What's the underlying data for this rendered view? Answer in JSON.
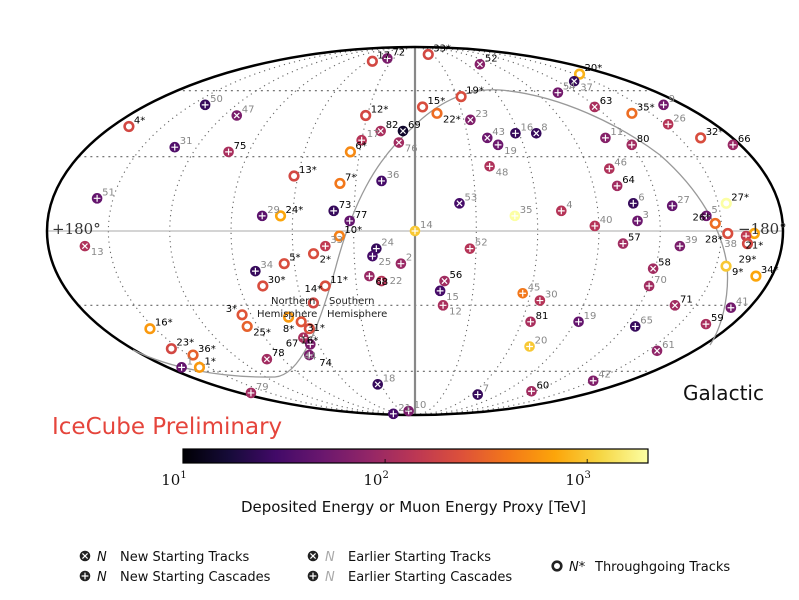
{
  "chart_data": {
    "type": "scatter",
    "projection": "mollweide",
    "coordinate_frame": "Galactic",
    "frame_label": "Galactic",
    "lon_labels": {
      "left": "+180°",
      "right": "−180°"
    },
    "hemisphere_labels": {
      "north": [
        "Northern",
        "Hemisphere"
      ],
      "south": [
        "Southern",
        "Hemisphere"
      ]
    },
    "watermark": "IceCube Preliminary",
    "colorbar": {
      "label": "Deposited Energy or Muon Energy Proxy [TeV]",
      "scale": "log",
      "range_tev": [
        10,
        2000
      ],
      "ticks": [
        {
          "value": 10,
          "base": "10",
          "exp": "1"
        },
        {
          "value": 100,
          "base": "10",
          "exp": "2"
        },
        {
          "value": 1000,
          "base": "10",
          "exp": "3"
        }
      ],
      "colormap": [
        "#000004",
        "#160b39",
        "#420a68",
        "#6a176e",
        "#932667",
        "#bc3754",
        "#dd513a",
        "#f37819",
        "#fca50a",
        "#f6d746",
        "#fcffa4"
      ]
    },
    "grid": {
      "lon_step_deg": 30,
      "lat_lines_deg": [
        -60,
        -30,
        30,
        60
      ]
    },
    "legend": [
      {
        "marker": "track",
        "n": "N",
        "text": "New Starting Tracks",
        "earlier": false
      },
      {
        "marker": "cascade",
        "n": "N",
        "text": "New Starting Cascades",
        "earlier": false
      },
      {
        "marker": "track",
        "n": "N",
        "text": "Earlier Starting Tracks",
        "earlier": true
      },
      {
        "marker": "cascade",
        "n": "N",
        "text": "Earlier Starting Cascades",
        "earlier": true
      },
      {
        "marker": "through",
        "n": "N*",
        "text": "Throughgoing Tracks",
        "earlier": false
      }
    ],
    "events": [
      {
        "label": "17",
        "t": "through",
        "new": true,
        "l": 54,
        "b": 77,
        "E": 200
      },
      {
        "label": "72",
        "t": "cascade",
        "new": true,
        "l": 39,
        "b": 79,
        "E": 60
      },
      {
        "label": "50",
        "t": "cascade",
        "new": false,
        "l": 141,
        "b": 53,
        "E": 25
      },
      {
        "label": "47",
        "t": "track",
        "new": false,
        "l": 112,
        "b": 48,
        "E": 60
      },
      {
        "label": "4*",
        "t": "through",
        "new": true,
        "l": 170,
        "b": 43,
        "E": 200
      },
      {
        "label": "31",
        "t": "cascade",
        "new": false,
        "l": 132,
        "b": 34,
        "E": 35
      },
      {
        "label": "75",
        "t": "cascade",
        "new": true,
        "l": 101,
        "b": 32,
        "E": 110
      },
      {
        "label": "12*",
        "t": "through",
        "new": true,
        "l": 31,
        "b": 48,
        "E": 200
      },
      {
        "label": "82",
        "t": "track",
        "new": true,
        "l": 20,
        "b": 41,
        "E": 110
      },
      {
        "label": "17",
        "t": "cascade",
        "new": false,
        "l": 30,
        "b": 37,
        "E": 130
      },
      {
        "label": "6*",
        "t": "through",
        "new": true,
        "l": 35,
        "b": 32,
        "E": 500
      },
      {
        "label": "13*",
        "t": "through",
        "new": true,
        "l": 62,
        "b": 22,
        "E": 200
      },
      {
        "label": "7*",
        "t": "through",
        "new": true,
        "l": 38,
        "b": 19,
        "E": 400
      },
      {
        "label": "36",
        "t": "cascade",
        "new": false,
        "l": 17,
        "b": 20,
        "E": 30
      },
      {
        "label": "51",
        "t": "cascade",
        "new": false,
        "l": 158,
        "b": 13,
        "E": 45
      },
      {
        "label": "29",
        "t": "cascade",
        "new": false,
        "l": 75,
        "b": 6,
        "E": 40
      },
      {
        "label": "24*",
        "t": "through",
        "new": true,
        "l": 66,
        "b": 6,
        "E": 700
      },
      {
        "label": "73",
        "t": "cascade",
        "new": true,
        "l": 40,
        "b": 8,
        "E": 25
      },
      {
        "label": "77",
        "t": "cascade",
        "new": true,
        "l": 32,
        "b": 4,
        "E": 45
      },
      {
        "label": "10*",
        "t": "through",
        "new": true,
        "l": 37,
        "b": -2,
        "E": 450
      },
      {
        "label": "69",
        "t": "track",
        "new": true,
        "l": 7,
        "b": 41,
        "E": 15
      },
      {
        "label": "76",
        "t": "track",
        "new": false,
        "l": 9,
        "b": 36,
        "E": 100
      },
      {
        "label": "15*",
        "t": "through",
        "new": true,
        "l": -5,
        "b": 52,
        "E": 220
      },
      {
        "label": "22*",
        "t": "through",
        "new": true,
        "l": -14,
        "b": 49,
        "E": 350
      },
      {
        "label": "33*",
        "t": "through",
        "new": true,
        "l": -23,
        "b": 82,
        "E": 200
      },
      {
        "label": "52",
        "t": "track",
        "new": true,
        "l": -75,
        "b": 75,
        "E": 70
      },
      {
        "label": "20*",
        "t": "through",
        "new": true,
        "l": -154,
        "b": 69,
        "E": 800
      },
      {
        "label": "37",
        "t": "track",
        "new": false,
        "l": -134,
        "b": 65,
        "E": 25
      },
      {
        "label": "54",
        "t": "cascade",
        "new": false,
        "l": -106,
        "b": 59,
        "E": 55
      },
      {
        "label": "19*",
        "t": "through",
        "new": true,
        "l": -33,
        "b": 57,
        "E": 220
      },
      {
        "label": "23",
        "t": "track",
        "new": false,
        "l": -34,
        "b": 46,
        "E": 65
      },
      {
        "label": "63",
        "t": "track",
        "new": true,
        "l": -119,
        "b": 52,
        "E": 110
      },
      {
        "label": "35*",
        "t": "through",
        "new": true,
        "l": -138,
        "b": 49,
        "E": 350
      },
      {
        "label": "9",
        "t": "cascade",
        "new": false,
        "l": -167,
        "b": 53,
        "E": 55
      },
      {
        "label": "26",
        "t": "cascade",
        "new": false,
        "l": -152,
        "b": 44,
        "E": 130
      },
      {
        "label": "32*",
        "t": "through",
        "new": true,
        "l": -162,
        "b": 38,
        "E": 220
      },
      {
        "label": "66",
        "t": "cascade",
        "new": true,
        "l": -176,
        "b": 35,
        "E": 90
      },
      {
        "label": "43",
        "t": "track",
        "new": false,
        "l": -41,
        "b": 38,
        "E": 50
      },
      {
        "label": "16",
        "t": "cascade",
        "new": false,
        "l": -58,
        "b": 40,
        "E": 25
      },
      {
        "label": "8",
        "t": "track",
        "new": false,
        "l": -70,
        "b": 40,
        "E": 25
      },
      {
        "label": "19",
        "t": "cascade",
        "new": false,
        "l": -46,
        "b": 35,
        "E": 50
      },
      {
        "label": "11",
        "t": "cascade",
        "new": false,
        "l": -108,
        "b": 38,
        "E": 70
      },
      {
        "label": "80",
        "t": "cascade",
        "new": true,
        "l": -120,
        "b": 35,
        "E": 100
      },
      {
        "label": "48",
        "t": "cascade",
        "new": false,
        "l": -39,
        "b": 26,
        "E": 120
      },
      {
        "label": "46",
        "t": "cascade",
        "new": false,
        "l": -101,
        "b": 25,
        "E": 120
      },
      {
        "label": "64",
        "t": "cascade",
        "new": true,
        "l": -102,
        "b": 18,
        "E": 100
      },
      {
        "label": "53",
        "t": "track",
        "new": false,
        "l": -22,
        "b": 11,
        "E": 30
      },
      {
        "label": "35",
        "t": "cascade",
        "new": false,
        "l": -49,
        "b": 6,
        "E": 2000
      },
      {
        "label": "4",
        "t": "cascade",
        "new": false,
        "l": -72,
        "b": 8,
        "E": 130
      },
      {
        "label": "6",
        "t": "cascade",
        "new": false,
        "l": -108,
        "b": 11,
        "E": 25
      },
      {
        "label": "3",
        "t": "cascade",
        "new": false,
        "l": -109,
        "b": 4,
        "E": 50
      },
      {
        "label": "40",
        "t": "cascade",
        "new": false,
        "l": -88,
        "b": 2,
        "E": 130
      },
      {
        "label": "27",
        "t": "cascade",
        "new": false,
        "l": -127,
        "b": 10,
        "E": 45
      },
      {
        "label": "5",
        "t": "cascade",
        "new": false,
        "l": -143,
        "b": 6,
        "E": 50
      },
      {
        "label": "27*",
        "t": "through",
        "new": true,
        "l": -154,
        "b": 11,
        "E": 2000
      },
      {
        "label": "26*",
        "t": "through",
        "new": true,
        "l": -147,
        "b": 3,
        "E": 350
      },
      {
        "label": "28*",
        "t": "through",
        "new": true,
        "l": -153,
        "b": -1,
        "E": 220
      },
      {
        "label": "21*",
        "t": "through",
        "new": true,
        "l": -166,
        "b": -1,
        "E": 700
      },
      {
        "label": "14",
        "t": "cascade",
        "new": false,
        "l": 0,
        "b": 0,
        "E": 1000
      },
      {
        "label": "57",
        "t": "cascade",
        "new": true,
        "l": -102,
        "b": -5,
        "E": 100
      },
      {
        "label": "39",
        "t": "cascade",
        "new": false,
        "l": -130,
        "b": -6,
        "E": 60
      },
      {
        "label": "38",
        "t": "cascade",
        "new": false,
        "l": -162,
        "b": -2,
        "E": 150
      },
      {
        "label": "29*",
        "t": "through",
        "new": true,
        "l": -163,
        "b": -5,
        "E": 200
      },
      {
        "label": "9*",
        "t": "through",
        "new": true,
        "l": -155,
        "b": -14,
        "E": 1000
      },
      {
        "label": "34*",
        "t": "through",
        "new": true,
        "l": -172,
        "b": -18,
        "E": 700
      },
      {
        "label": "52",
        "t": "cascade",
        "new": false,
        "l": -27,
        "b": -7,
        "E": 130
      },
      {
        "label": "2",
        "t": "cascade",
        "new": false,
        "l": 7,
        "b": -13,
        "E": 90
      },
      {
        "label": "56",
        "t": "track",
        "new": true,
        "l": -15,
        "b": -20,
        "E": 100
      },
      {
        "label": "15",
        "t": "cascade",
        "new": false,
        "l": -13,
        "b": -24,
        "E": 30
      },
      {
        "label": "12",
        "t": "cascade",
        "new": false,
        "l": -15,
        "b": -30,
        "E": 110
      },
      {
        "label": "45",
        "t": "cascade",
        "new": false,
        "l": -56,
        "b": -25,
        "E": 400
      },
      {
        "label": "30",
        "t": "cascade",
        "new": false,
        "l": -66,
        "b": -28,
        "E": 130
      },
      {
        "label": "81",
        "t": "cascade",
        "new": true,
        "l": -65,
        "b": -37,
        "E": 110
      },
      {
        "label": "20",
        "t": "cascade",
        "new": false,
        "l": -72,
        "b": -48,
        "E": 1000
      },
      {
        "label": "19",
        "t": "cascade",
        "new": false,
        "l": -92,
        "b": -37,
        "E": 45
      },
      {
        "label": "58",
        "t": "track",
        "new": true,
        "l": -119,
        "b": -15,
        "E": 100
      },
      {
        "label": "70",
        "t": "cascade",
        "new": false,
        "l": -120,
        "b": -22,
        "E": 100
      },
      {
        "label": "71",
        "t": "track",
        "new": true,
        "l": -139,
        "b": -30,
        "E": 100
      },
      {
        "label": "65",
        "t": "cascade",
        "new": false,
        "l": -126,
        "b": -39,
        "E": 25
      },
      {
        "label": "41",
        "t": "cascade",
        "new": false,
        "l": -170,
        "b": -31,
        "E": 55
      },
      {
        "label": "59",
        "t": "cascade",
        "new": true,
        "l": -165,
        "b": -38,
        "E": 110
      },
      {
        "label": "61",
        "t": "track",
        "new": false,
        "l": -156,
        "b": -50,
        "E": 80
      },
      {
        "label": "42",
        "t": "cascade",
        "new": false,
        "l": -150,
        "b": -65,
        "E": 65
      },
      {
        "label": "7",
        "t": "cascade",
        "new": false,
        "l": -67,
        "b": -73,
        "E": 25
      },
      {
        "label": "60",
        "t": "cascade",
        "new": true,
        "l": -116,
        "b": -71,
        "E": 100
      },
      {
        "label": "10",
        "t": "cascade",
        "new": false,
        "l": 15,
        "b": -85,
        "E": 60
      },
      {
        "label": "13",
        "t": "track",
        "new": false,
        "l": 162,
        "b": -6,
        "E": 120
      },
      {
        "label": "33",
        "t": "cascade",
        "new": false,
        "l": 44,
        "b": -6,
        "E": 150
      },
      {
        "label": "2*",
        "t": "through",
        "new": true,
        "l": 50,
        "b": -9,
        "E": 220
      },
      {
        "label": "24",
        "t": "cascade",
        "new": false,
        "l": 19,
        "b": -7,
        "E": 25
      },
      {
        "label": "25",
        "t": "cascade",
        "new": false,
        "l": 21,
        "b": -10,
        "E": 30
      },
      {
        "label": "5*",
        "t": "through",
        "new": true,
        "l": 65,
        "b": -13,
        "E": 220
      },
      {
        "label": "34",
        "t": "cascade",
        "new": false,
        "l": 80,
        "b": -16,
        "E": 25
      },
      {
        "label": "68",
        "t": "cascade",
        "new": true,
        "l": 23,
        "b": -18,
        "E": 90
      },
      {
        "label": "22",
        "t": "cascade",
        "new": false,
        "l": 17,
        "b": -20,
        "E": 130
      },
      {
        "label": "30*",
        "t": "through",
        "new": true,
        "l": 78,
        "b": -22,
        "E": 220
      },
      {
        "label": "11*",
        "t": "through",
        "new": true,
        "l": 46,
        "b": -22,
        "E": 220
      },
      {
        "label": "14*",
        "t": "through",
        "new": true,
        "l": 54,
        "b": -29,
        "E": 200
      },
      {
        "label": "3*",
        "t": "through",
        "new": true,
        "l": 95,
        "b": -34,
        "E": 250
      },
      {
        "label": "8*",
        "t": "through",
        "new": true,
        "l": 70,
        "b": -35,
        "E": 600
      },
      {
        "label": "25*",
        "t": "through",
        "new": true,
        "l": 96,
        "b": -39,
        "E": 300
      },
      {
        "label": "31*",
        "t": "through",
        "new": true,
        "l": 64,
        "b": -37,
        "E": 250
      },
      {
        "label": "16*",
        "t": "through",
        "new": true,
        "l": 61,
        "b": -40,
        "E": 220
      },
      {
        "label": "67",
        "t": "cascade",
        "new": true,
        "l": 67,
        "b": -44,
        "E": 110
      },
      {
        "label": "44",
        "t": "cascade",
        "new": false,
        "l": 65,
        "b": -47,
        "E": 60
      },
      {
        "label": "74",
        "t": "cascade",
        "new": true,
        "l": 70,
        "b": -52,
        "E": 60
      },
      {
        "label": "16*",
        "t": "through",
        "new": true,
        "l": 153,
        "b": -40,
        "E": 600
      },
      {
        "label": "23*",
        "t": "through",
        "new": true,
        "l": 155,
        "b": -49,
        "E": 200
      },
      {
        "label": "36*",
        "t": "through",
        "new": true,
        "l": 147,
        "b": -52,
        "E": 300
      },
      {
        "label": "1",
        "t": "cascade",
        "new": false,
        "l": 170,
        "b": -58,
        "E": 45
      },
      {
        "label": "1*",
        "t": "through",
        "new": true,
        "l": 157,
        "b": -58,
        "E": 600
      },
      {
        "label": "78",
        "t": "track",
        "new": true,
        "l": 101,
        "b": -54,
        "E": 100
      },
      {
        "label": "79",
        "t": "cascade",
        "new": false,
        "l": 169,
        "b": -72,
        "E": 100
      },
      {
        "label": "18",
        "t": "track",
        "new": false,
        "l": 33,
        "b": -67,
        "E": 25
      },
      {
        "label": "21",
        "t": "cascade",
        "new": false,
        "l": 94,
        "b": -88,
        "E": 30
      }
    ]
  }
}
